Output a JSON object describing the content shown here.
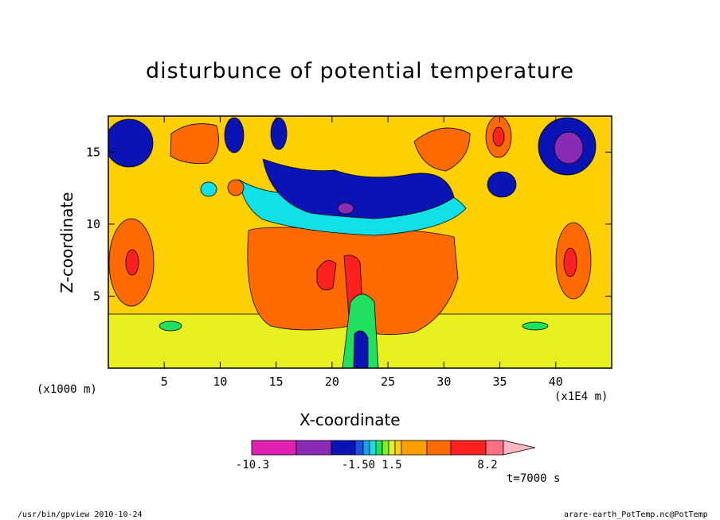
{
  "chart_data": {
    "type": "heatmap",
    "title": "disturbunce of potential temperature",
    "xlabel": "X-coordinate",
    "ylabel": "Z-coordinate",
    "x_unit_label": "(x1000 m)",
    "x_scale_label": "(x1E4 m)",
    "xlim": [
      0,
      45
    ],
    "ylim": [
      0,
      17.5
    ],
    "x_ticks": [
      "5",
      "10",
      "15",
      "20",
      "25",
      "30",
      "35",
      "40"
    ],
    "x_tick_values": [
      5,
      10,
      15,
      20,
      25,
      30,
      35,
      40
    ],
    "y_ticks": [
      "5",
      "10",
      "15"
    ],
    "y_tick_values": [
      5,
      10,
      15
    ],
    "colorbar": {
      "colors": [
        "#e020b0",
        "#8a2bb8",
        "#0a14b4",
        "#1850e8",
        "#18a0f0",
        "#10e0e8",
        "#20e060",
        "#80f020",
        "#e8f020",
        "#ffd000",
        "#ffa000",
        "#ff6a00",
        "#ff2020",
        "#ff7080",
        "#ffb8c0"
      ],
      "labels": [
        "-10.3",
        "-1.50",
        "1.5",
        "8.2"
      ],
      "label_values": [
        -10.3,
        -1.5,
        1.5,
        8.2
      ]
    },
    "field_levels": [
      {
        "name": "background",
        "color": "#ffd000"
      },
      {
        "name": "warm-mid",
        "color": "#ff6a00"
      },
      {
        "name": "warm-max",
        "color": "#ff2020"
      },
      {
        "name": "cool-low",
        "color": "#e8f020"
      },
      {
        "name": "cool-upper",
        "color": "#0a14b4"
      },
      {
        "name": "cool-min",
        "color": "#8a2bb8"
      }
    ],
    "grid": false
  },
  "time_label": "t=7000 s",
  "footer": {
    "left": "/usr/bin/gpview  2010-10-24",
    "right": "arare-earth_PotTemp.nc@PotTemp"
  }
}
